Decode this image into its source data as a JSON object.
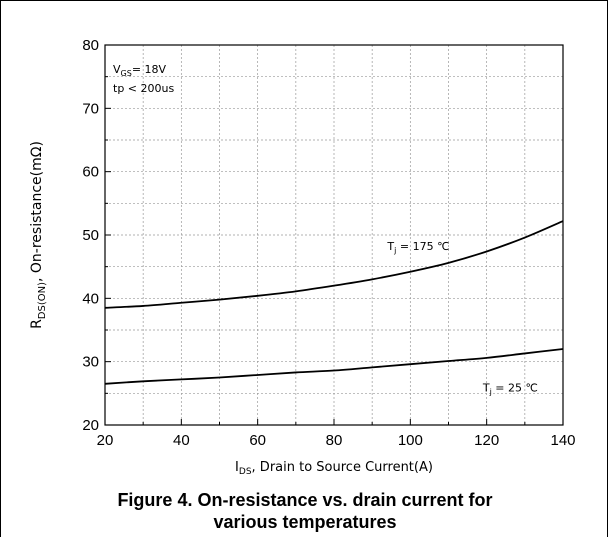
{
  "chart_data": {
    "type": "line",
    "xlim": [
      20,
      140
    ],
    "ylim": [
      20,
      80
    ],
    "xticks": [
      "20",
      "40",
      "60",
      "80",
      "100",
      "120",
      "140"
    ],
    "yticks": [
      "20",
      "30",
      "40",
      "50",
      "60",
      "70",
      "80"
    ],
    "xlabel": {
      "main": "I",
      "sub": "DS",
      "rest": ", Drain to Source Current(A)"
    },
    "ylabel": {
      "main": "R",
      "sub": "DS(ON)",
      "rest": ", On-resistance(mΩ)"
    },
    "grid": true,
    "conditions": {
      "vgs": {
        "main": "V",
        "sub": "GS",
        "rest": "= 18V"
      },
      "tp": "tp < 200us"
    },
    "series": [
      {
        "name": {
          "main": "T",
          "sub": "j",
          "rest": " = 175 ℃"
        },
        "x": [
          20,
          30,
          40,
          50,
          60,
          70,
          80,
          90,
          100,
          110,
          120,
          130,
          140
        ],
        "y": [
          38.5,
          38.8,
          39.3,
          39.8,
          40.4,
          41.1,
          42.0,
          43.0,
          44.2,
          45.6,
          47.4,
          49.6,
          52.2
        ]
      },
      {
        "name": {
          "main": "T",
          "sub": "j",
          "rest": " = 25 ℃"
        },
        "x": [
          20,
          30,
          40,
          50,
          60,
          70,
          80,
          90,
          100,
          110,
          120,
          130,
          140
        ],
        "y": [
          26.5,
          26.9,
          27.2,
          27.5,
          27.9,
          28.3,
          28.6,
          29.1,
          29.6,
          30.1,
          30.6,
          31.3,
          32.0
        ]
      }
    ]
  },
  "caption": {
    "line1": "Figure 4. On-resistance vs. drain current for",
    "line2": "various temperatures"
  }
}
